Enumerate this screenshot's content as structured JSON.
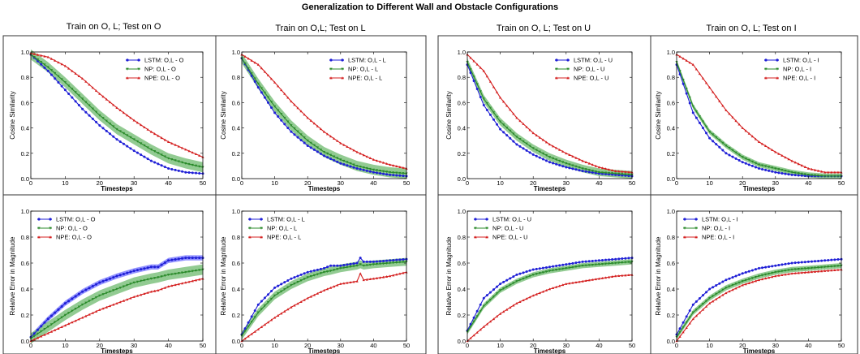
{
  "figure": {
    "title": "Generalization to Different Wall and Obstacle Configurations",
    "column_titles": [
      "Train on O, L; Test on O",
      "Train on O,L; Test on L",
      "Train on O, L; Test on U",
      "Train on O, L; Test on I"
    ]
  },
  "colors": {
    "lstm": "#1f1fd6",
    "np": "#2a8a2a",
    "np_band": "#7fc27f",
    "npe": "#d42020",
    "lstm_band": "#8080ff",
    "npe_band": "#f08080"
  },
  "chart_data": [
    {
      "type": "line",
      "panel": "top-1",
      "title": "Train on O, L; Test on O",
      "xlabel": "Timesteps",
      "ylabel": "Cosine Similarity",
      "xlim": [
        0,
        50
      ],
      "ylim": [
        0.0,
        1.0
      ],
      "xticks": [
        0,
        10,
        20,
        30,
        40,
        50
      ],
      "yticks": [
        0.0,
        0.2,
        0.4,
        0.6,
        0.8,
        1.0
      ],
      "legend": "top-right",
      "x": [
        0,
        5,
        10,
        15,
        20,
        25,
        30,
        35,
        40,
        45,
        50
      ],
      "series": [
        {
          "name": "LSTM: O,L - O",
          "key": "lstm",
          "values": [
            0.98,
            0.85,
            0.7,
            0.55,
            0.42,
            0.31,
            0.22,
            0.14,
            0.08,
            0.05,
            0.04
          ]
        },
        {
          "name": "NP: O,L - O",
          "key": "np",
          "values": [
            0.98,
            0.88,
            0.76,
            0.63,
            0.5,
            0.39,
            0.31,
            0.23,
            0.16,
            0.12,
            0.09
          ],
          "band": 0.04
        },
        {
          "name": "NPE: O,L - O",
          "key": "npe",
          "values": [
            0.99,
            0.96,
            0.89,
            0.79,
            0.67,
            0.56,
            0.46,
            0.37,
            0.29,
            0.23,
            0.17
          ]
        }
      ]
    },
    {
      "type": "line",
      "panel": "top-2",
      "title": "Train on O,L; Test on L",
      "xlabel": "Timesteps",
      "ylabel": "Cosine Similarity",
      "xlim": [
        0,
        50
      ],
      "ylim": [
        0.0,
        1.0
      ],
      "xticks": [
        0,
        10,
        20,
        30,
        40,
        50
      ],
      "yticks": [
        0.0,
        0.2,
        0.4,
        0.6,
        0.8,
        1.0
      ],
      "legend": "top-right",
      "x": [
        0,
        5,
        10,
        15,
        20,
        25,
        30,
        35,
        40,
        45,
        50
      ],
      "series": [
        {
          "name": "LSTM: O,L - L",
          "key": "lstm",
          "values": [
            0.95,
            0.72,
            0.52,
            0.37,
            0.26,
            0.18,
            0.12,
            0.08,
            0.05,
            0.03,
            0.02
          ]
        },
        {
          "name": "NP: O,L - L",
          "key": "np",
          "values": [
            0.95,
            0.75,
            0.57,
            0.42,
            0.3,
            0.21,
            0.15,
            0.1,
            0.07,
            0.05,
            0.04
          ],
          "band": 0.04
        },
        {
          "name": "NPE: O,L - L",
          "key": "npe",
          "values": [
            0.98,
            0.9,
            0.76,
            0.61,
            0.48,
            0.37,
            0.28,
            0.21,
            0.15,
            0.11,
            0.08
          ]
        }
      ]
    },
    {
      "type": "line",
      "panel": "top-3",
      "title": "Train on O, L; Test on U",
      "xlabel": "Timesteps",
      "ylabel": "Cosine Similarity",
      "xlim": [
        0,
        50
      ],
      "ylim": [
        0.0,
        1.0
      ],
      "xticks": [
        0,
        10,
        20,
        30,
        40,
        50
      ],
      "yticks": [
        0.0,
        0.2,
        0.4,
        0.6,
        0.8,
        1.0
      ],
      "legend": "top-right",
      "x": [
        0,
        5,
        10,
        15,
        20,
        25,
        30,
        35,
        40,
        45,
        50
      ],
      "series": [
        {
          "name": "LSTM: O,L - U",
          "key": "lstm",
          "values": [
            0.9,
            0.58,
            0.39,
            0.27,
            0.19,
            0.13,
            0.09,
            0.06,
            0.04,
            0.03,
            0.02
          ]
        },
        {
          "name": "NP: O,L - U",
          "key": "np",
          "values": [
            0.92,
            0.63,
            0.45,
            0.33,
            0.24,
            0.17,
            0.12,
            0.08,
            0.05,
            0.04,
            0.03
          ],
          "band": 0.03
        },
        {
          "name": "NPE: O,L - U",
          "key": "npe",
          "values": [
            0.98,
            0.85,
            0.64,
            0.48,
            0.36,
            0.27,
            0.2,
            0.14,
            0.09,
            0.06,
            0.05
          ]
        }
      ]
    },
    {
      "type": "line",
      "panel": "top-4",
      "title": "Train on O, L; Test on I",
      "xlabel": "Timesteps",
      "ylabel": "Cosine Similarity",
      "xlim": [
        0,
        50
      ],
      "ylim": [
        0.0,
        1.0
      ],
      "xticks": [
        0,
        10,
        20,
        30,
        40,
        50
      ],
      "yticks": [
        0.0,
        0.2,
        0.4,
        0.6,
        0.8,
        1.0
      ],
      "legend": "top-right",
      "x": [
        0,
        5,
        10,
        15,
        20,
        25,
        30,
        35,
        40,
        45,
        50
      ],
      "series": [
        {
          "name": "LSTM: O,L - I",
          "key": "lstm",
          "values": [
            0.9,
            0.52,
            0.32,
            0.2,
            0.13,
            0.08,
            0.05,
            0.03,
            0.02,
            0.02,
            0.02
          ]
        },
        {
          "name": "NP: O,L - I",
          "key": "np",
          "values": [
            0.92,
            0.57,
            0.37,
            0.26,
            0.17,
            0.11,
            0.08,
            0.05,
            0.03,
            0.02,
            0.02
          ],
          "band": 0.02
        },
        {
          "name": "NPE: O,L - I",
          "key": "npe",
          "values": [
            0.98,
            0.9,
            0.72,
            0.54,
            0.4,
            0.29,
            0.21,
            0.14,
            0.08,
            0.05,
            0.05
          ]
        }
      ]
    },
    {
      "type": "line",
      "panel": "bottom-1",
      "xlabel": "Timesteps",
      "ylabel": "Relative Error in Magnitude",
      "xlim": [
        0,
        50
      ],
      "ylim": [
        0.0,
        1.0
      ],
      "xticks": [
        0,
        10,
        20,
        30,
        40,
        50
      ],
      "yticks": [
        0.0,
        0.2,
        0.4,
        0.6,
        0.8,
        1.0
      ],
      "legend": "top-left",
      "x": [
        0,
        5,
        10,
        15,
        20,
        25,
        30,
        35,
        37,
        40,
        45,
        50
      ],
      "series": [
        {
          "name": "LSTM: O,L - O",
          "key": "lstm",
          "values": [
            0.03,
            0.17,
            0.29,
            0.38,
            0.45,
            0.5,
            0.54,
            0.57,
            0.57,
            0.62,
            0.64,
            0.64
          ],
          "band": 0.02
        },
        {
          "name": "NP: O,L - O",
          "key": "np",
          "values": [
            0.02,
            0.11,
            0.2,
            0.28,
            0.35,
            0.4,
            0.45,
            0.48,
            0.49,
            0.51,
            0.53,
            0.55
          ],
          "band": 0.04
        },
        {
          "name": "NPE: O,L - O",
          "key": "npe",
          "values": [
            0.0,
            0.06,
            0.12,
            0.18,
            0.24,
            0.29,
            0.34,
            0.38,
            0.39,
            0.42,
            0.45,
            0.48
          ]
        }
      ]
    },
    {
      "type": "line",
      "panel": "bottom-2",
      "xlabel": "Timesteps",
      "ylabel": "Relative Error in Magnitude",
      "xlim": [
        0,
        50
      ],
      "ylim": [
        0.0,
        1.0
      ],
      "xticks": [
        0,
        10,
        20,
        30,
        40,
        50
      ],
      "yticks": [
        0.0,
        0.2,
        0.4,
        0.6,
        0.8,
        1.0
      ],
      "legend": "top-left",
      "x": [
        0,
        5,
        10,
        15,
        20,
        25,
        27,
        30,
        35,
        36,
        37,
        40,
        45,
        50
      ],
      "series": [
        {
          "name": "LSTM: O,L - L",
          "key": "lstm",
          "values": [
            0.05,
            0.28,
            0.41,
            0.48,
            0.53,
            0.56,
            0.58,
            0.58,
            0.6,
            0.64,
            0.61,
            0.61,
            0.62,
            0.63
          ]
        },
        {
          "name": "NP: O,L - L",
          "key": "np",
          "values": [
            0.04,
            0.22,
            0.35,
            0.43,
            0.49,
            0.53,
            0.54,
            0.56,
            0.58,
            0.59,
            0.58,
            0.59,
            0.6,
            0.61
          ],
          "band": 0.03
        },
        {
          "name": "NPE: O,L - L",
          "key": "npe",
          "values": [
            0.0,
            0.09,
            0.18,
            0.26,
            0.33,
            0.39,
            0.41,
            0.44,
            0.46,
            0.52,
            0.47,
            0.48,
            0.5,
            0.53
          ]
        }
      ]
    },
    {
      "type": "line",
      "panel": "bottom-3",
      "xlabel": "Timesteps",
      "ylabel": "Relative Error in Magnitude",
      "xlim": [
        0,
        50
      ],
      "ylim": [
        0.0,
        1.0
      ],
      "xticks": [
        0,
        10,
        20,
        30,
        40,
        50
      ],
      "yticks": [
        0.0,
        0.2,
        0.4,
        0.6,
        0.8,
        1.0
      ],
      "legend": "top-left",
      "x": [
        0,
        5,
        10,
        15,
        20,
        25,
        30,
        35,
        40,
        45,
        50
      ],
      "series": [
        {
          "name": "LSTM: O,L - U",
          "key": "lstm",
          "values": [
            0.08,
            0.33,
            0.44,
            0.51,
            0.55,
            0.57,
            0.59,
            0.61,
            0.62,
            0.63,
            0.64
          ]
        },
        {
          "name": "NP: O,L - U",
          "key": "np",
          "values": [
            0.07,
            0.27,
            0.39,
            0.46,
            0.51,
            0.54,
            0.56,
            0.58,
            0.59,
            0.6,
            0.61
          ],
          "band": 0.02
        },
        {
          "name": "NPE: O,L - U",
          "key": "npe",
          "values": [
            0.0,
            0.11,
            0.21,
            0.29,
            0.35,
            0.4,
            0.44,
            0.46,
            0.48,
            0.5,
            0.51
          ]
        }
      ]
    },
    {
      "type": "line",
      "panel": "bottom-4",
      "xlabel": "Timesteps",
      "ylabel": "Relative Error in Magnitude",
      "xlim": [
        0,
        50
      ],
      "ylim": [
        0.0,
        1.0
      ],
      "xticks": [
        0,
        10,
        20,
        30,
        40,
        50
      ],
      "yticks": [
        0.0,
        0.2,
        0.4,
        0.6,
        0.8,
        1.0
      ],
      "legend": "top-left",
      "x": [
        0,
        5,
        10,
        15,
        20,
        25,
        30,
        35,
        40,
        45,
        50
      ],
      "series": [
        {
          "name": "LSTM: O,L - I",
          "key": "lstm",
          "values": [
            0.05,
            0.28,
            0.4,
            0.47,
            0.52,
            0.56,
            0.58,
            0.6,
            0.61,
            0.62,
            0.63
          ]
        },
        {
          "name": "NP: O,L - I",
          "key": "np",
          "values": [
            0.03,
            0.22,
            0.33,
            0.41,
            0.46,
            0.5,
            0.53,
            0.55,
            0.56,
            0.57,
            0.58
          ],
          "band": 0.02
        },
        {
          "name": "NPE: O,L - I",
          "key": "npe",
          "values": [
            0.0,
            0.17,
            0.29,
            0.37,
            0.43,
            0.47,
            0.5,
            0.52,
            0.53,
            0.54,
            0.55
          ]
        }
      ]
    }
  ]
}
